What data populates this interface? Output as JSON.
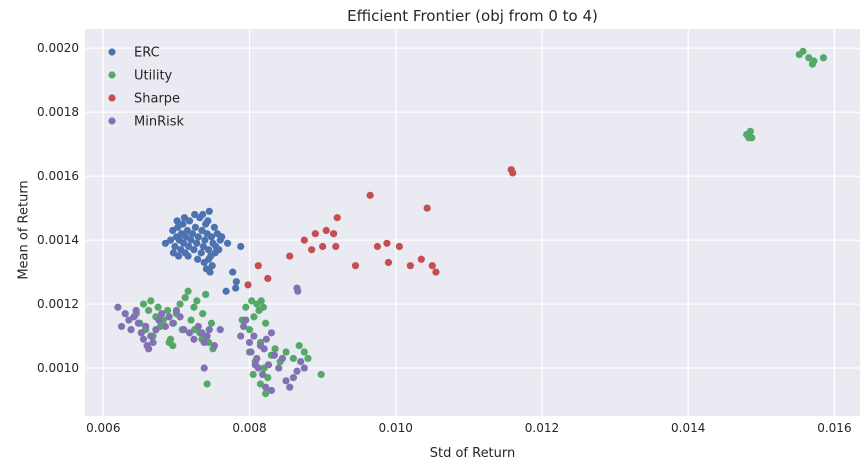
{
  "chart_data": {
    "type": "scatter",
    "title": "Efficient Frontier (obj from 0 to 4)",
    "xlabel": "Std of Return",
    "ylabel": "Mean of Return",
    "xlim": [
      0.00575,
      0.01635
    ],
    "ylim": [
      0.00085,
      0.00206
    ],
    "xticks": [
      "0.006",
      "0.008",
      "0.010",
      "0.012",
      "0.014",
      "0.016"
    ],
    "yticks": [
      "0.0010",
      "0.0012",
      "0.0014",
      "0.0016",
      "0.0018",
      "0.0020"
    ],
    "grid": true,
    "legend_position": "top-left",
    "series": [
      {
        "name": "ERC",
        "color": "#4c72b0",
        "points": [
          [
            0.00685,
            0.00139
          ],
          [
            0.00692,
            0.0014
          ],
          [
            0.00695,
            0.00143
          ],
          [
            0.00698,
            0.00138
          ],
          [
            0.007,
            0.00141
          ],
          [
            0.00702,
            0.00144
          ],
          [
            0.00704,
            0.0014
          ],
          [
            0.00706,
            0.00137
          ],
          [
            0.00707,
            0.00142
          ],
          [
            0.00709,
            0.00145
          ],
          [
            0.0071,
            0.00139
          ],
          [
            0.00712,
            0.00136
          ],
          [
            0.00713,
            0.00141
          ],
          [
            0.00715,
            0.00143
          ],
          [
            0.00717,
            0.00138
          ],
          [
            0.00718,
            0.00146
          ],
          [
            0.0072,
            0.0014
          ],
          [
            0.00722,
            0.00142
          ],
          [
            0.00724,
            0.00137
          ],
          [
            0.00726,
            0.00144
          ],
          [
            0.00728,
            0.00139
          ],
          [
            0.0073,
            0.00141
          ],
          [
            0.00732,
            0.00147
          ],
          [
            0.00734,
            0.00136
          ],
          [
            0.00735,
            0.00143
          ],
          [
            0.00737,
            0.00138
          ],
          [
            0.00739,
            0.0014
          ],
          [
            0.0074,
            0.00145
          ],
          [
            0.00742,
            0.00142
          ],
          [
            0.00744,
            0.00137
          ],
          [
            0.00745,
            0.00149
          ],
          [
            0.00747,
            0.00135
          ],
          [
            0.00748,
            0.00141
          ],
          [
            0.0075,
            0.00139
          ],
          [
            0.00752,
            0.00144
          ],
          [
            0.00754,
            0.00138
          ],
          [
            0.00756,
            0.00142
          ],
          [
            0.00758,
            0.00137
          ],
          [
            0.0076,
            0.0014
          ],
          [
            0.00762,
            0.00141
          ],
          [
            0.00738,
            0.00133
          ],
          [
            0.00741,
            0.00131
          ],
          [
            0.00744,
            0.00134
          ],
          [
            0.00746,
            0.0013
          ],
          [
            0.00749,
            0.00132
          ],
          [
            0.00701,
            0.00146
          ],
          [
            0.00711,
            0.00147
          ],
          [
            0.00725,
            0.00148
          ],
          [
            0.00736,
            0.00148
          ],
          [
            0.00743,
            0.00146
          ],
          [
            0.00696,
            0.00136
          ],
          [
            0.00703,
            0.00135
          ],
          [
            0.00716,
            0.00135
          ],
          [
            0.00729,
            0.00134
          ],
          [
            0.00753,
            0.00136
          ],
          [
            0.0077,
            0.00139
          ],
          [
            0.00788,
            0.00138
          ],
          [
            0.00777,
            0.0013
          ],
          [
            0.00782,
            0.00127
          ],
          [
            0.00768,
            0.00124
          ],
          [
            0.00781,
            0.00125
          ]
        ]
      },
      {
        "name": "Utility",
        "color": "#55a868",
        "points": [
          [
            0.00645,
            0.00117
          ],
          [
            0.0065,
            0.00114
          ],
          [
            0.00655,
            0.0012
          ],
          [
            0.00658,
            0.00112
          ],
          [
            0.00662,
            0.00118
          ],
          [
            0.00665,
            0.00121
          ],
          [
            0.00668,
            0.0011
          ],
          [
            0.00672,
            0.00116
          ],
          [
            0.00675,
            0.00119
          ],
          [
            0.00678,
            0.00113
          ],
          [
            0.00682,
            0.00115
          ],
          [
            0.00688,
            0.00118
          ],
          [
            0.00692,
            0.00109
          ],
          [
            0.00696,
            0.00114
          ],
          [
            0.007,
            0.00117
          ],
          [
            0.00705,
            0.0012
          ],
          [
            0.00708,
            0.00112
          ],
          [
            0.00712,
            0.00122
          ],
          [
            0.00716,
            0.00124
          ],
          [
            0.0072,
            0.00115
          ],
          [
            0.00724,
            0.00119
          ],
          [
            0.00728,
            0.00121
          ],
          [
            0.00732,
            0.00111
          ],
          [
            0.00736,
            0.00117
          ],
          [
            0.0074,
            0.00123
          ],
          [
            0.00744,
            0.00108
          ],
          [
            0.00748,
            0.00114
          ],
          [
            0.00742,
            0.00095
          ],
          [
            0.00695,
            0.00107
          ],
          [
            0.0069,
            0.00108
          ],
          [
            0.00725,
            0.00112
          ],
          [
            0.00735,
            0.00109
          ],
          [
            0.0075,
            0.00106
          ],
          [
            0.0079,
            0.00115
          ],
          [
            0.00795,
            0.00119
          ],
          [
            0.008,
            0.00112
          ],
          [
            0.00803,
            0.00121
          ],
          [
            0.00806,
            0.00116
          ],
          [
            0.0081,
            0.0012
          ],
          [
            0.00813,
            0.00118
          ],
          [
            0.00816,
            0.00121
          ],
          [
            0.00819,
            0.00119
          ],
          [
            0.00822,
            0.00114
          ],
          [
            0.008,
            0.00105
          ],
          [
            0.00808,
            0.00102
          ],
          [
            0.00815,
            0.00108
          ],
          [
            0.0082,
            0.001
          ],
          [
            0.00825,
            0.00097
          ],
          [
            0.0083,
            0.00104
          ],
          [
            0.00835,
            0.00106
          ],
          [
            0.00842,
            0.00102
          ],
          [
            0.0085,
            0.00105
          ],
          [
            0.0086,
            0.00103
          ],
          [
            0.00868,
            0.00107
          ],
          [
            0.00875,
            0.00105
          ],
          [
            0.0088,
            0.00103
          ],
          [
            0.00898,
            0.00098
          ],
          [
            0.00822,
            0.00092
          ],
          [
            0.00815,
            0.00095
          ],
          [
            0.00805,
            0.00098
          ],
          [
            0.0148,
            0.00173
          ],
          [
            0.01483,
            0.00172
          ],
          [
            0.01485,
            0.00174
          ],
          [
            0.01487,
            0.00172
          ],
          [
            0.01552,
            0.00198
          ],
          [
            0.01557,
            0.00199
          ],
          [
            0.01565,
            0.00197
          ],
          [
            0.0157,
            0.00195
          ],
          [
            0.01572,
            0.00196
          ],
          [
            0.01585,
            0.00197
          ]
        ]
      },
      {
        "name": "Sharpe",
        "color": "#c44e52",
        "points": [
          [
            0.00798,
            0.00126
          ],
          [
            0.00812,
            0.00132
          ],
          [
            0.00825,
            0.00128
          ],
          [
            0.00855,
            0.00135
          ],
          [
            0.00875,
            0.0014
          ],
          [
            0.00885,
            0.00137
          ],
          [
            0.0089,
            0.00142
          ],
          [
            0.009,
            0.00138
          ],
          [
            0.00905,
            0.00143
          ],
          [
            0.00915,
            0.00142
          ],
          [
            0.00918,
            0.00138
          ],
          [
            0.0092,
            0.00147
          ],
          [
            0.00945,
            0.00132
          ],
          [
            0.00965,
            0.00154
          ],
          [
            0.00975,
            0.00138
          ],
          [
            0.00988,
            0.00139
          ],
          [
            0.0099,
            0.00133
          ],
          [
            0.01005,
            0.00138
          ],
          [
            0.0102,
            0.00132
          ],
          [
            0.01035,
            0.00134
          ],
          [
            0.01043,
            0.0015
          ],
          [
            0.0105,
            0.00132
          ],
          [
            0.01055,
            0.0013
          ],
          [
            0.01158,
            0.00162
          ],
          [
            0.0116,
            0.00161
          ]
        ]
      },
      {
        "name": "MinRisk",
        "color": "#8172b2",
        "points": [
          [
            0.0062,
            0.00119
          ],
          [
            0.00625,
            0.00113
          ],
          [
            0.0063,
            0.00117
          ],
          [
            0.00635,
            0.00115
          ],
          [
            0.00638,
            0.00112
          ],
          [
            0.00642,
            0.00116
          ],
          [
            0.00645,
            0.00118
          ],
          [
            0.00648,
            0.00114
          ],
          [
            0.00652,
            0.00111
          ],
          [
            0.00655,
            0.00109
          ],
          [
            0.00658,
            0.00113
          ],
          [
            0.0066,
            0.00107
          ],
          [
            0.00662,
            0.00106
          ],
          [
            0.00665,
            0.0011
          ],
          [
            0.00668,
            0.00108
          ],
          [
            0.00672,
            0.00112
          ],
          [
            0.00676,
            0.00115
          ],
          [
            0.0068,
            0.00117
          ],
          [
            0.00685,
            0.00113
          ],
          [
            0.0069,
            0.00116
          ],
          [
            0.00695,
            0.00114
          ],
          [
            0.007,
            0.00118
          ],
          [
            0.00705,
            0.00116
          ],
          [
            0.0071,
            0.00112
          ],
          [
            0.00718,
            0.00111
          ],
          [
            0.00724,
            0.00109
          ],
          [
            0.0073,
            0.00113
          ],
          [
            0.00735,
            0.00111
          ],
          [
            0.00738,
            0.00108
          ],
          [
            0.00742,
            0.0011
          ],
          [
            0.00745,
            0.00112
          ],
          [
            0.00752,
            0.00107
          ],
          [
            0.0076,
            0.00112
          ],
          [
            0.00738,
            0.001
          ],
          [
            0.00788,
            0.0011
          ],
          [
            0.00792,
            0.00113
          ],
          [
            0.00795,
            0.00115
          ],
          [
            0.008,
            0.00108
          ],
          [
            0.00802,
            0.00105
          ],
          [
            0.00806,
            0.0011
          ],
          [
            0.0081,
            0.00103
          ],
          [
            0.00812,
            0.001
          ],
          [
            0.00815,
            0.00107
          ],
          [
            0.00818,
            0.00098
          ],
          [
            0.0082,
            0.00106
          ],
          [
            0.00823,
            0.00109
          ],
          [
            0.00826,
            0.00101
          ],
          [
            0.0083,
            0.00111
          ],
          [
            0.00834,
            0.00104
          ],
          [
            0.0084,
            0.001
          ],
          [
            0.00845,
            0.00103
          ],
          [
            0.0085,
            0.00096
          ],
          [
            0.00855,
            0.00094
          ],
          [
            0.0086,
            0.00097
          ],
          [
            0.00865,
            0.00099
          ],
          [
            0.0087,
            0.00102
          ],
          [
            0.00875,
            0.001
          ],
          [
            0.0083,
            0.00093
          ],
          [
            0.00822,
            0.00094
          ],
          [
            0.00808,
            0.00101
          ],
          [
            0.00865,
            0.00125
          ],
          [
            0.00866,
            0.00124
          ]
        ]
      }
    ]
  }
}
